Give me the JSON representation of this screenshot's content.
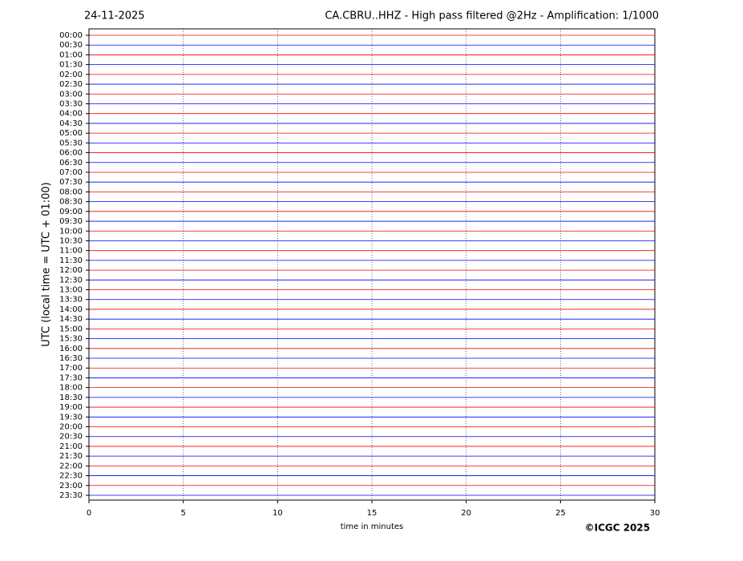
{
  "chart_data": {
    "type": "helicorder",
    "date": "24-11-2025",
    "title": "CA.CBRU..HHZ - High pass filtered @2Hz - Amplification: 1/1000",
    "y_label": "UTC (local time = UTC + 01:00)",
    "x_label": "time in minutes",
    "copyright": "©ICGC 2025",
    "categories": [
      "00:00",
      "00:30",
      "01:00",
      "01:30",
      "02:00",
      "02:30",
      "03:00",
      "03:30",
      "04:00",
      "04:30",
      "05:00",
      "05:30",
      "06:00",
      "06:30",
      "07:00",
      "07:30",
      "08:00",
      "08:30",
      "09:00",
      "09:30",
      "10:00",
      "10:30",
      "11:00",
      "11:30",
      "12:00",
      "12:30",
      "13:00",
      "13:30",
      "14:00",
      "14:30",
      "15:00",
      "15:30",
      "16:00",
      "16:30",
      "17:00",
      "17:30",
      "18:00",
      "18:30",
      "19:00",
      "19:30",
      "20:00",
      "20:30",
      "21:00",
      "21:30",
      "22:00",
      "22:30",
      "23:00",
      "23:30"
    ],
    "trace_colors": [
      "#ff0000",
      "#0000ff"
    ],
    "xlim": [
      0,
      30
    ],
    "xticks": [
      0,
      5,
      10,
      15,
      20,
      25,
      30
    ],
    "grid": true
  }
}
